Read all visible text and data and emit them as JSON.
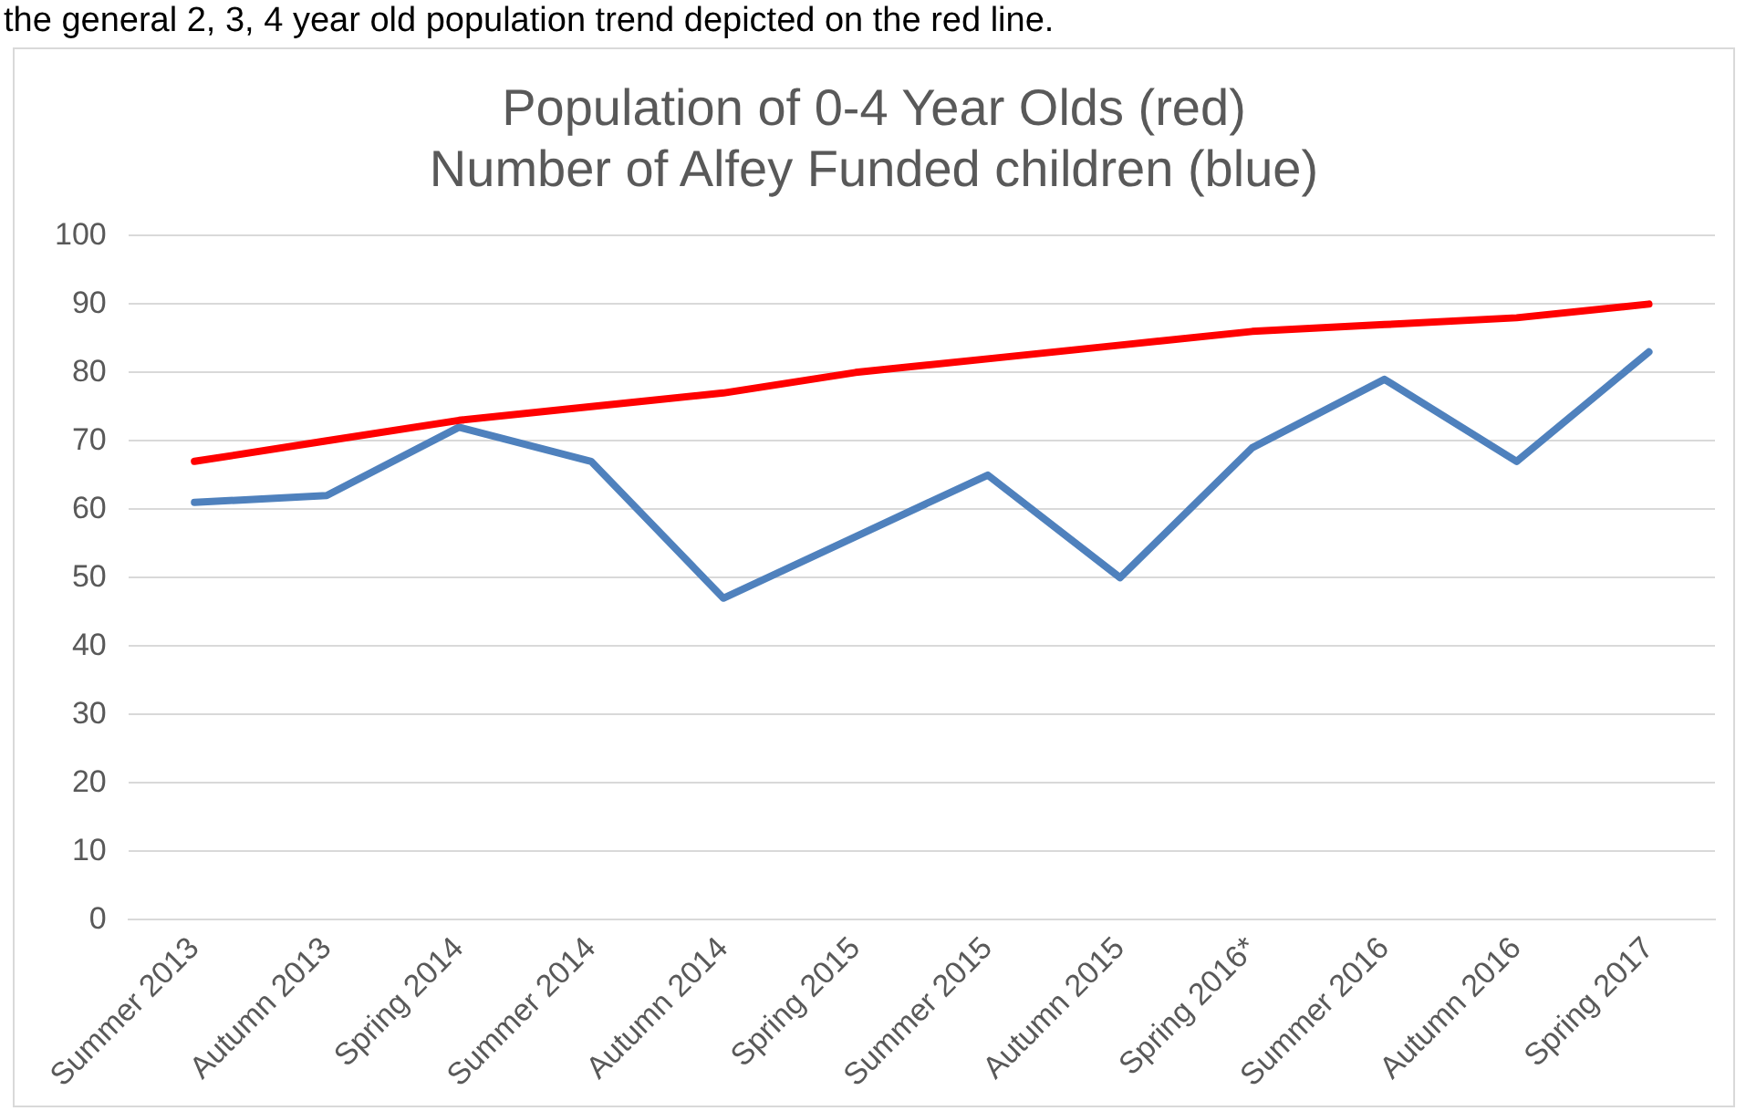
{
  "chart_data": {
    "type": "line",
    "title": "Population of 0-4 Year Olds (red)\nNumber of Alfey Funded children (blue)",
    "annotations": [
      "the general 2, 3, 4 year old population trend depicted on the red line."
    ],
    "categories": [
      "Summer 2013",
      "Autumn 2013",
      "Spring 2014",
      "Summer 2014",
      "Autumn 2014",
      "Spring 2015",
      "Summer 2015",
      "Autumn 2015",
      "Spring 2016*",
      "Summer 2016",
      "Autumn 2016",
      "Spring 2017"
    ],
    "series": [
      {
        "color": "#ff0000",
        "values": [
          67,
          70,
          73,
          75,
          77,
          80,
          82,
          84,
          86,
          87,
          88,
          90
        ]
      },
      {
        "color": "#4f81bd",
        "values": [
          61,
          62,
          72,
          67,
          47,
          56,
          65,
          50,
          69,
          79,
          67,
          83
        ]
      }
    ],
    "ylim": [
      0,
      100
    ],
    "yticks": [
      0,
      10,
      20,
      30,
      40,
      50,
      60,
      70,
      80,
      90,
      100
    ],
    "grid": "y",
    "legend": false,
    "marker": "none",
    "line_style": "solid"
  }
}
